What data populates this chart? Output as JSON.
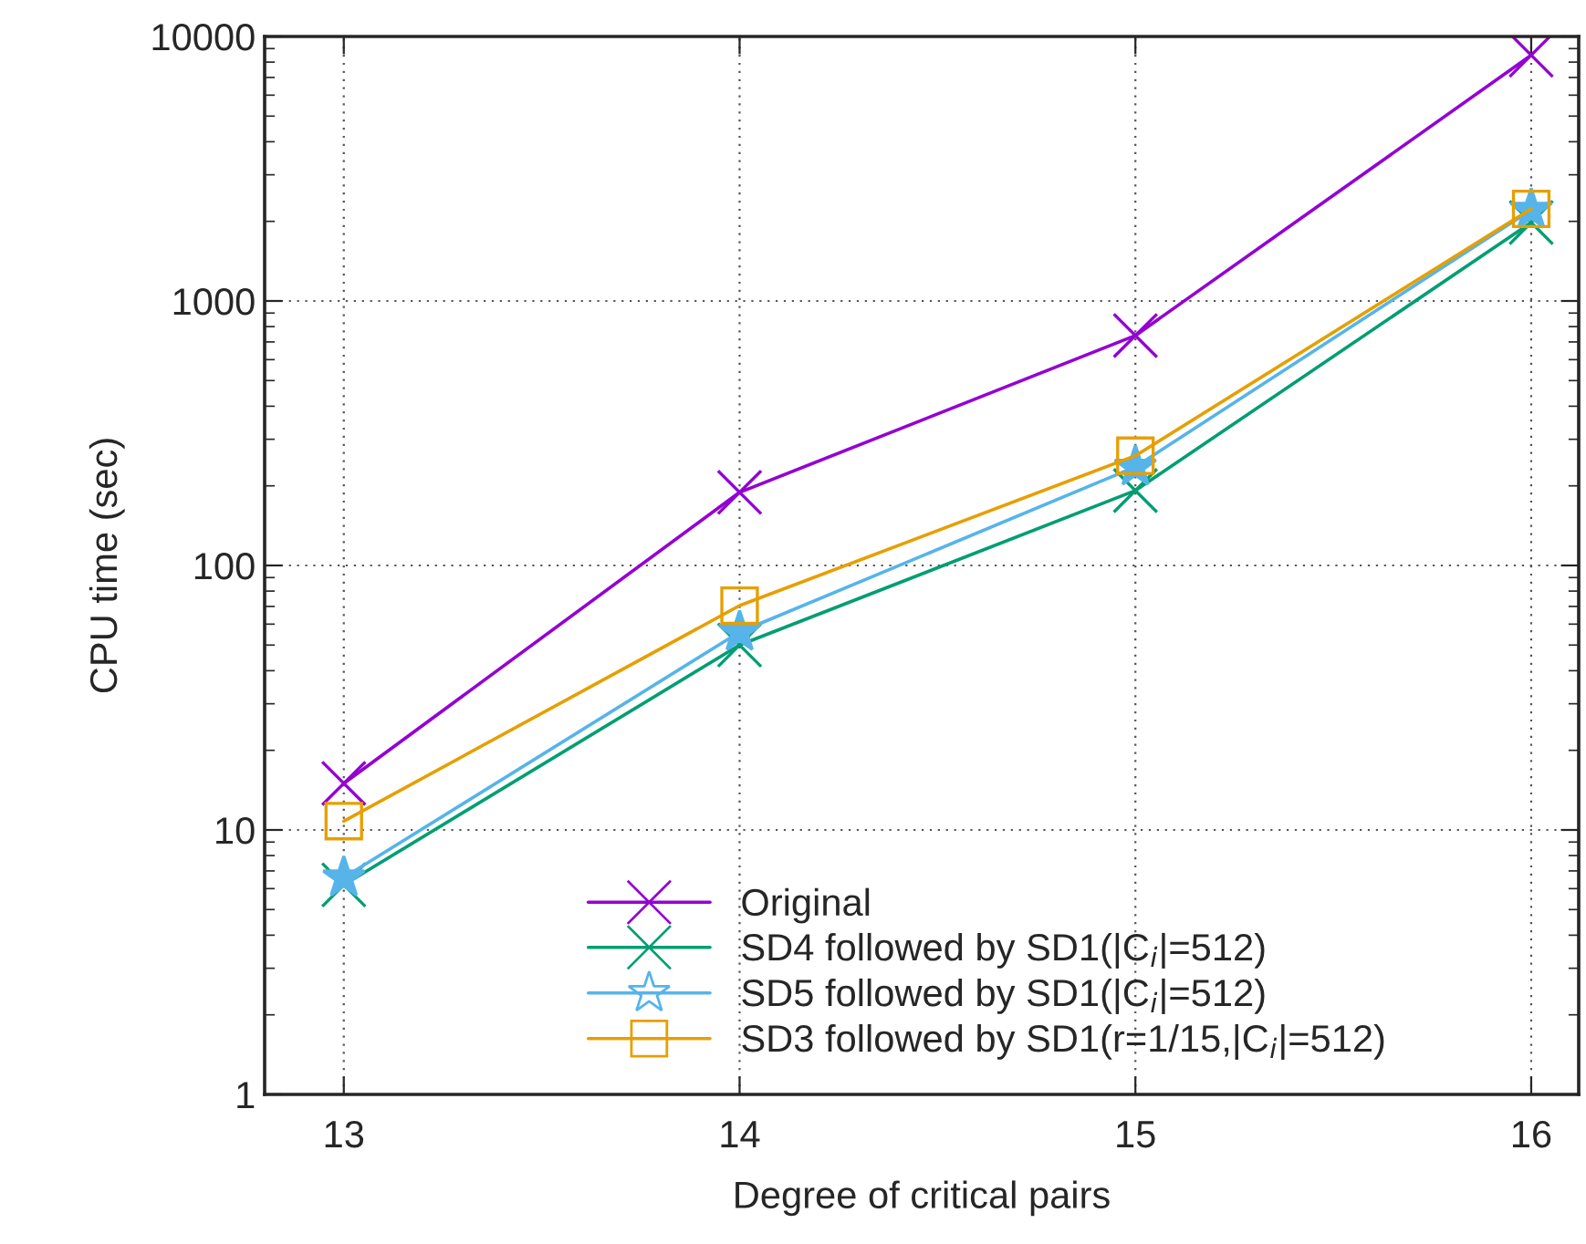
{
  "chart_data": {
    "type": "line",
    "xlabel": "Degree of critical pairs",
    "ylabel": "CPU time (sec)",
    "x": [
      13,
      14,
      15,
      16
    ],
    "xlim": [
      12.8,
      16.12
    ],
    "xticks": [
      13,
      14,
      15,
      16
    ],
    "log": "y",
    "ylim": [
      1,
      10000
    ],
    "yticks": [
      1,
      10,
      100,
      1000,
      10000
    ],
    "grid": true,
    "legend": "bottom",
    "series": [
      {
        "name": "Original",
        "color": "#9400d3",
        "marker": "cross",
        "values": [
          15,
          189,
          740,
          8500
        ]
      },
      {
        "name": "SD4 followed by SD1(|C$_{i}$|=512)",
        "color": "#009e73",
        "marker": "cross",
        "values": [
          6.2,
          50,
          192,
          1980
        ]
      },
      {
        "name": "SD5 followed by SD1(|C$_{i}$|=512)",
        "color": "#56b4e9",
        "marker": "star",
        "values": [
          6.6,
          56,
          236,
          2210
        ]
      },
      {
        "name": "SD3 followed by SD1(r=1/15,|C$_{i}$|=512)",
        "color": "#e69f00",
        "marker": "square",
        "values": [
          10.8,
          70.5,
          260,
          2230
        ]
      }
    ]
  }
}
